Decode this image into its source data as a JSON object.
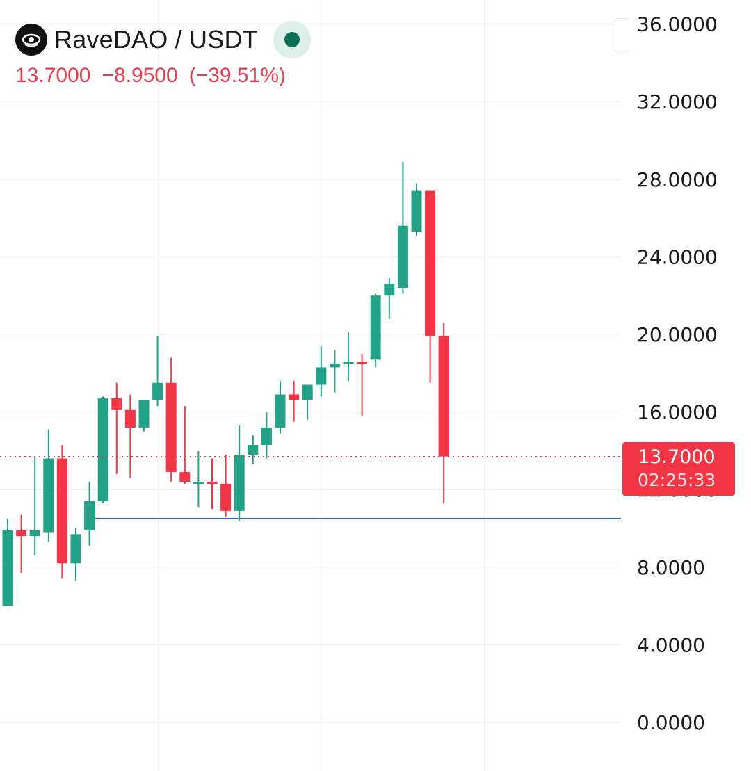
{
  "header": {
    "symbol": "RaveDAO / USDT",
    "status_color": "#0b6e55",
    "price": "13.7000",
    "change": "−8.9500",
    "change_pct": "(−39.51%)",
    "change_color": "#e0414f"
  },
  "price_tag": {
    "price": "13.7000",
    "countdown": "02:25:33"
  },
  "colors": {
    "up": "#22a387",
    "down": "#f23645",
    "support_line": "#2e62c9",
    "grid": "#f0f0f0",
    "axis_text": "#1a1a1a"
  },
  "chart_data": {
    "type": "candlestick",
    "ylim": [
      0,
      37.2
    ],
    "y_ticks": [
      "36.0000",
      "32.0000",
      "28.0000",
      "24.0000",
      "20.0000",
      "16.0000",
      "12.0000",
      "8.0000",
      "4.0000",
      "0.0000"
    ],
    "y_tick_values": [
      36,
      32,
      28,
      24,
      20,
      16,
      12,
      8,
      4,
      0
    ],
    "last_price": 13.7,
    "support_level": 10.5,
    "candles": [
      {
        "o": 6.0,
        "h": 10.5,
        "l": 6.0,
        "c": 9.9
      },
      {
        "o": 9.9,
        "h": 10.7,
        "l": 7.7,
        "c": 9.6
      },
      {
        "o": 9.6,
        "h": 13.7,
        "l": 8.6,
        "c": 9.9
      },
      {
        "o": 9.8,
        "h": 15.1,
        "l": 9.3,
        "c": 13.6
      },
      {
        "o": 13.6,
        "h": 14.3,
        "l": 7.4,
        "c": 8.2
      },
      {
        "o": 8.2,
        "h": 10.0,
        "l": 7.3,
        "c": 9.7
      },
      {
        "o": 9.9,
        "h": 12.4,
        "l": 9.1,
        "c": 11.4
      },
      {
        "o": 11.4,
        "h": 16.8,
        "l": 11.3,
        "c": 16.7
      },
      {
        "o": 16.7,
        "h": 17.5,
        "l": 12.8,
        "c": 16.1
      },
      {
        "o": 16.1,
        "h": 16.9,
        "l": 12.6,
        "c": 15.2
      },
      {
        "o": 15.2,
        "h": 16.6,
        "l": 15.0,
        "c": 16.6
      },
      {
        "o": 16.6,
        "h": 19.9,
        "l": 16.3,
        "c": 17.5
      },
      {
        "o": 17.5,
        "h": 18.8,
        "l": 12.4,
        "c": 12.9
      },
      {
        "o": 12.9,
        "h": 16.3,
        "l": 12.3,
        "c": 12.4
      },
      {
        "o": 12.4,
        "h": 14.0,
        "l": 11.1,
        "c": 12.4
      },
      {
        "o": 12.4,
        "h": 13.6,
        "l": 11.0,
        "c": 12.3
      },
      {
        "o": 12.3,
        "h": 13.8,
        "l": 10.6,
        "c": 10.9
      },
      {
        "o": 10.9,
        "h": 15.3,
        "l": 10.4,
        "c": 13.8
      },
      {
        "o": 13.8,
        "h": 14.8,
        "l": 13.3,
        "c": 14.3
      },
      {
        "o": 14.3,
        "h": 16.0,
        "l": 13.6,
        "c": 15.2
      },
      {
        "o": 15.2,
        "h": 17.6,
        "l": 14.9,
        "c": 16.9
      },
      {
        "o": 16.9,
        "h": 17.6,
        "l": 15.5,
        "c": 16.6
      },
      {
        "o": 16.6,
        "h": 17.4,
        "l": 15.6,
        "c": 17.4
      },
      {
        "o": 17.4,
        "h": 19.4,
        "l": 16.8,
        "c": 18.3
      },
      {
        "o": 18.3,
        "h": 19.2,
        "l": 17.0,
        "c": 18.5
      },
      {
        "o": 18.5,
        "h": 20.1,
        "l": 17.6,
        "c": 18.6
      },
      {
        "o": 18.6,
        "h": 19.0,
        "l": 15.8,
        "c": 18.5
      },
      {
        "o": 18.7,
        "h": 22.1,
        "l": 18.3,
        "c": 22.0
      },
      {
        "o": 22.0,
        "h": 22.9,
        "l": 20.8,
        "c": 22.6
      },
      {
        "o": 22.4,
        "h": 28.9,
        "l": 22.1,
        "c": 25.6
      },
      {
        "o": 25.3,
        "h": 27.8,
        "l": 25.1,
        "c": 27.4
      },
      {
        "o": 27.4,
        "h": 27.4,
        "l": 17.5,
        "c": 19.9
      },
      {
        "o": 19.9,
        "h": 20.6,
        "l": 11.3,
        "c": 13.7
      }
    ]
  }
}
